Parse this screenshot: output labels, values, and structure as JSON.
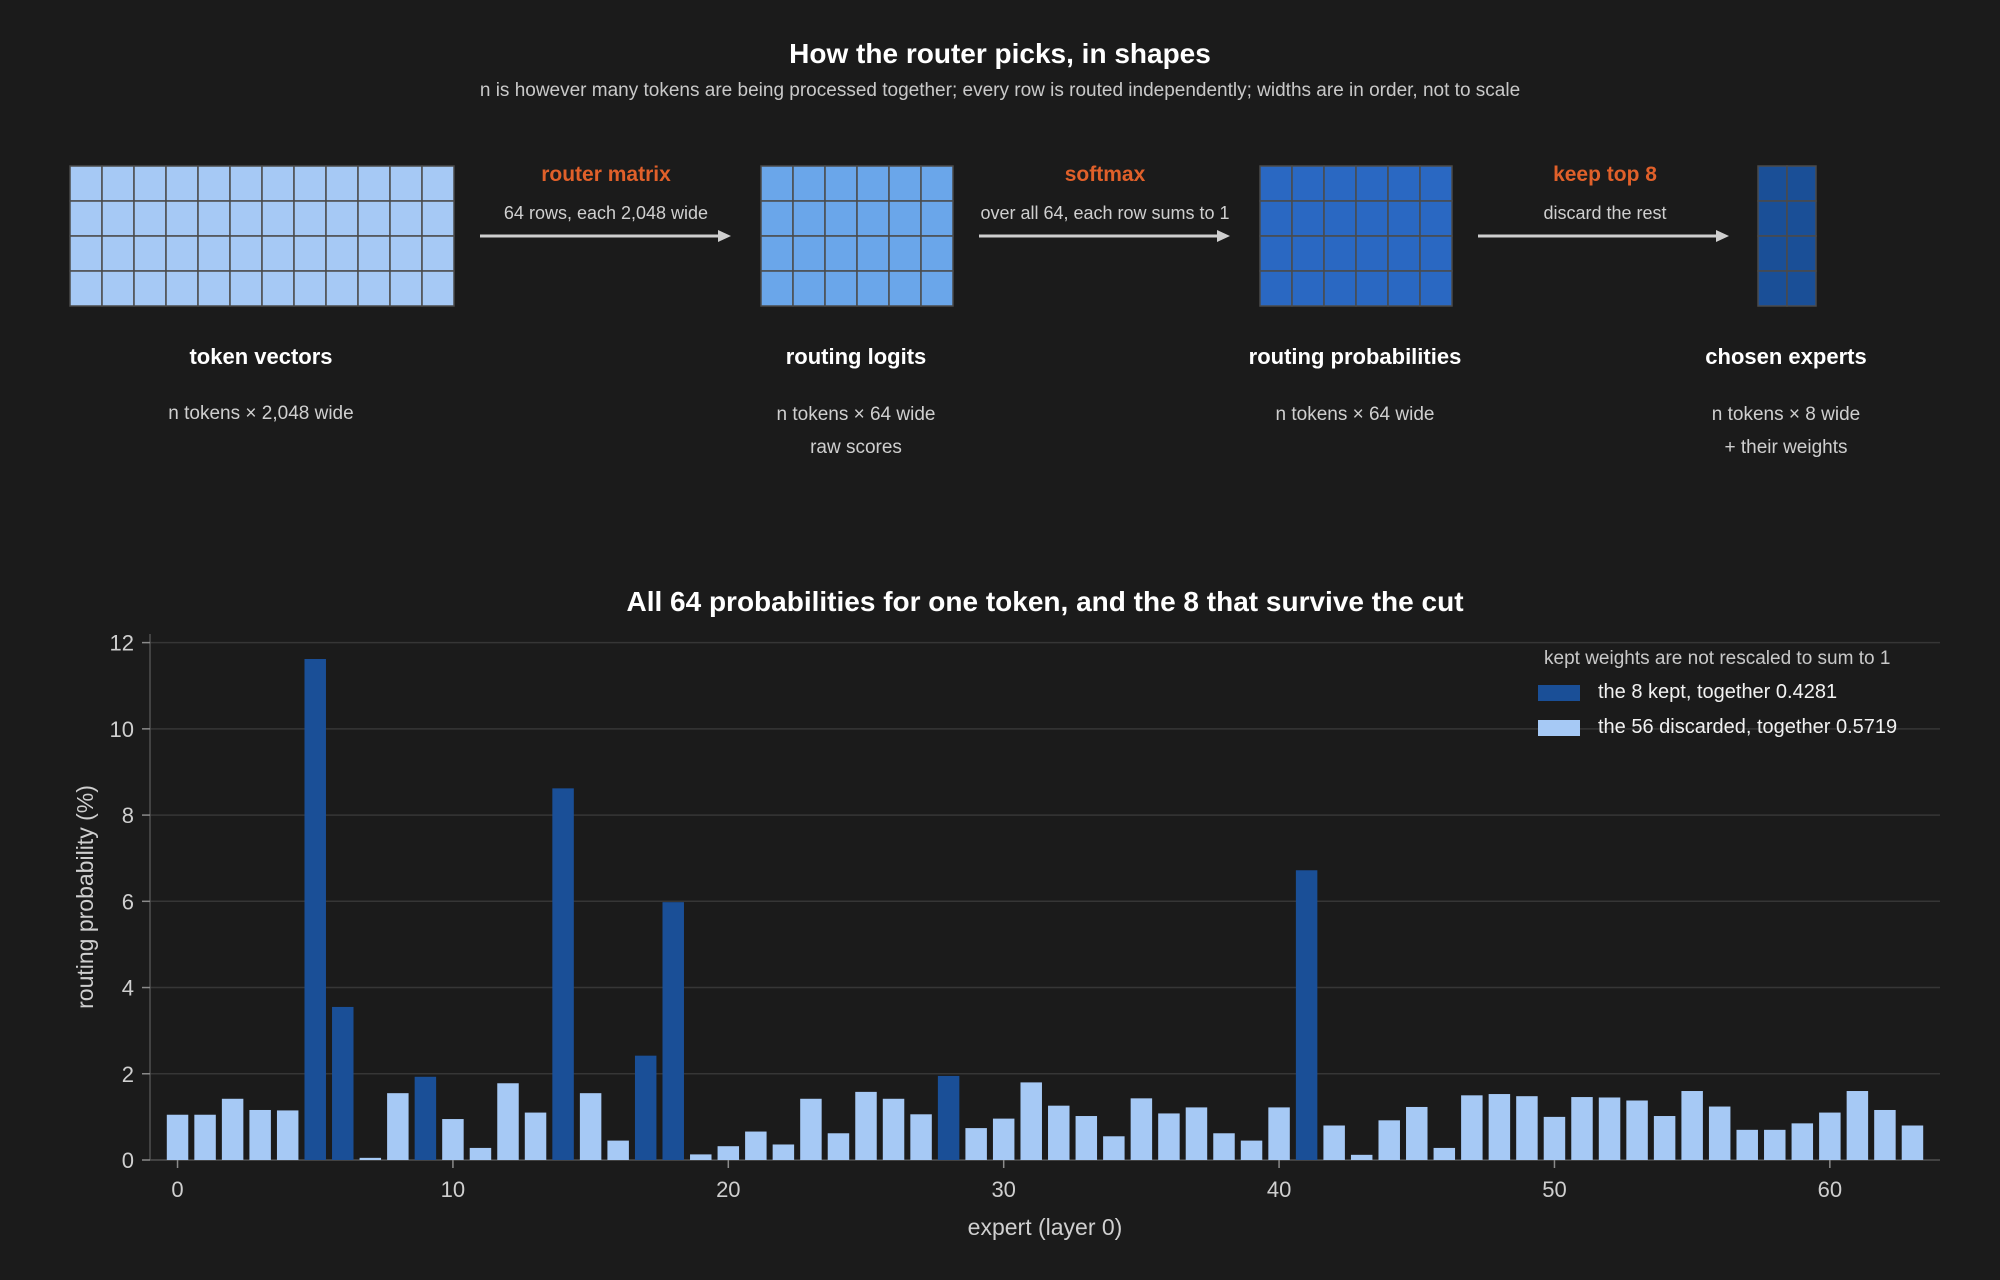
{
  "header": {
    "title": "How the router picks, in shapes",
    "subtitle": "n is however many tokens are being processed together; every row is routed independently; widths are in order, not to scale"
  },
  "stages": [
    {
      "title": "token vectors",
      "lines": [
        "n tokens × 2,048 wide"
      ],
      "color": "#a6c9f5"
    },
    {
      "title": "routing logits",
      "lines": [
        "n tokens × 64 wide",
        "raw scores"
      ],
      "color": "#6aa6ea"
    },
    {
      "title": "routing probabilities",
      "lines": [
        "n tokens × 64 wide"
      ],
      "color": "#2a68c2"
    },
    {
      "title": "chosen experts",
      "lines": [
        "n tokens × 8 wide",
        "+ their weights"
      ],
      "color": "#1a4f97"
    }
  ],
  "arrows": [
    {
      "label": "router matrix",
      "sub": "64 rows, each 2,048 wide"
    },
    {
      "label": "softmax",
      "sub": "over all 64, each row sums to 1"
    },
    {
      "label": "keep top 8",
      "sub": "discard the rest"
    }
  ],
  "colors": {
    "kept": "#1a4f97",
    "discarded": "#a6c9f5",
    "accent": "#e0602a",
    "background": "#1b1b1b"
  },
  "chart_data": {
    "type": "bar",
    "title": "All 64 probabilities for one token, and the 8 that survive the cut",
    "xlabel": "expert (layer 0)",
    "ylabel": "routing probability (%)",
    "ylim": [
      0,
      12.2
    ],
    "xlim": [
      -1,
      64
    ],
    "yticks": [
      0,
      2,
      4,
      6,
      8,
      10,
      12
    ],
    "xticks": [
      0,
      10,
      20,
      30,
      40,
      50,
      60
    ],
    "grid": true,
    "legend_position": "top-right",
    "legend_note": "kept weights are not rescaled to sum to 1",
    "series": [
      {
        "name": "the 8 kept, together 0.4281",
        "color": "#1a4f97"
      },
      {
        "name": "the 56 discarded, together 0.5719",
        "color": "#a6c9f5"
      }
    ],
    "kept_indices": [
      5,
      6,
      9,
      14,
      17,
      18,
      28,
      41
    ],
    "values": [
      1.05,
      1.05,
      1.42,
      1.16,
      1.15,
      11.62,
      3.55,
      0.05,
      1.55,
      1.93,
      0.95,
      0.28,
      1.78,
      1.1,
      8.62,
      1.55,
      0.45,
      2.42,
      5.98,
      0.13,
      0.32,
      0.66,
      0.36,
      1.42,
      0.62,
      1.58,
      1.42,
      1.06,
      1.95,
      0.74,
      0.96,
      1.8,
      1.26,
      1.02,
      0.55,
      1.43,
      1.08,
      1.22,
      0.62,
      0.45,
      1.22,
      6.72,
      0.8,
      0.12,
      0.92,
      1.23,
      0.28,
      1.5,
      1.53,
      1.48,
      1.0,
      1.46,
      1.45,
      1.38,
      1.02,
      1.6,
      1.24,
      0.7,
      0.7,
      0.85,
      1.1,
      1.6,
      1.16,
      0.8
    ]
  }
}
